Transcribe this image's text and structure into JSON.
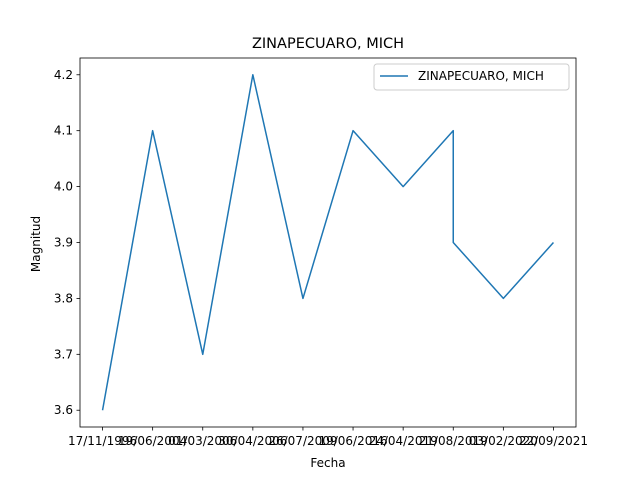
{
  "chart_data": {
    "type": "line",
    "title": "ZINAPECUARO, MICH",
    "xlabel": "Fecha",
    "ylabel": "Magnitud",
    "categories": [
      "17/11/1996",
      "19/06/2004",
      "01/03/2006",
      "30/04/2006",
      "26/07/2009",
      "19/06/2016",
      "24/04/2019",
      "21/08/2019",
      "21/08/2019",
      "03/02/2020",
      "22/09/2021"
    ],
    "x_positions": [
      0,
      1,
      2,
      3,
      4,
      5,
      6,
      7,
      7,
      8,
      9
    ],
    "x_tick_labels": [
      "17/11/1996",
      "19/06/2004",
      "01/03/2006",
      "30/04/2006",
      "26/07/2009",
      "19/06/2016",
      "24/04/2019",
      "21/08/2019",
      "03/02/2020",
      "22/09/2021"
    ],
    "series": [
      {
        "name": "ZINAPECUARO, MICH",
        "values": [
          3.6,
          4.1,
          3.7,
          4.2,
          3.8,
          4.1,
          4.0,
          4.1,
          3.9,
          3.8,
          3.9
        ],
        "color": "#1f77b4"
      }
    ],
    "ylim": [
      3.57,
      4.23
    ],
    "y_ticks": [
      "3.6",
      "3.7",
      "3.8",
      "3.9",
      "4.0",
      "4.1",
      "4.2"
    ],
    "grid": false,
    "legend": "upper-right"
  }
}
